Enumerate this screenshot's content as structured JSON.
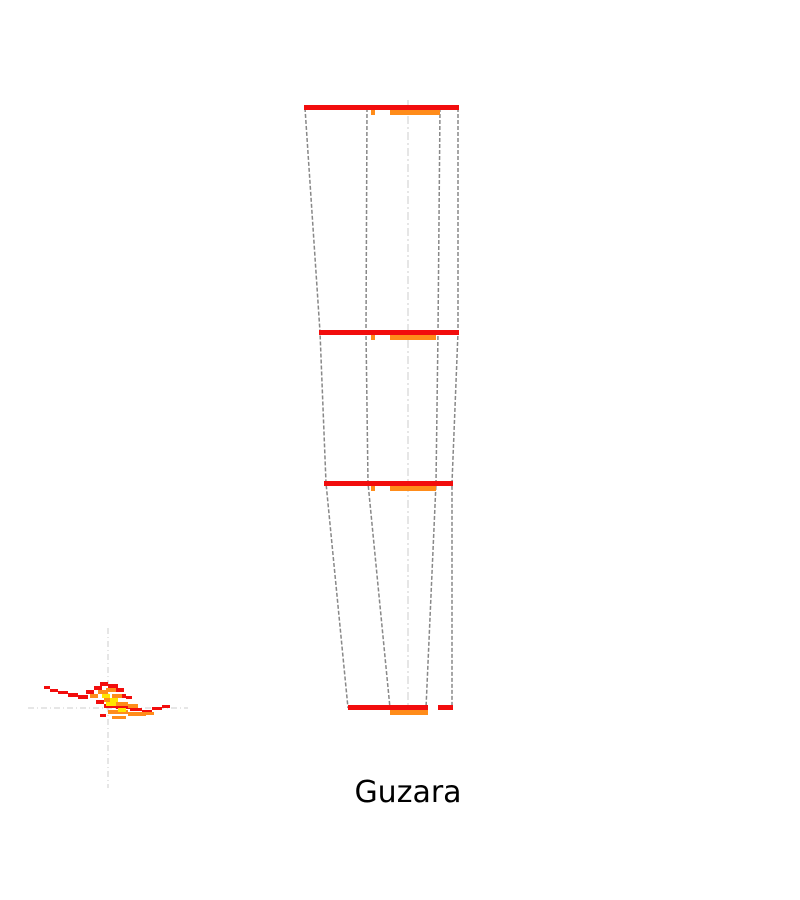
{
  "caption": "Guzara",
  "colors": {
    "red": "#f20d0d",
    "orange": "#ff8c1a",
    "yellow": "#ffe600",
    "outline": "#888888",
    "axis": "#cccccc"
  }
}
